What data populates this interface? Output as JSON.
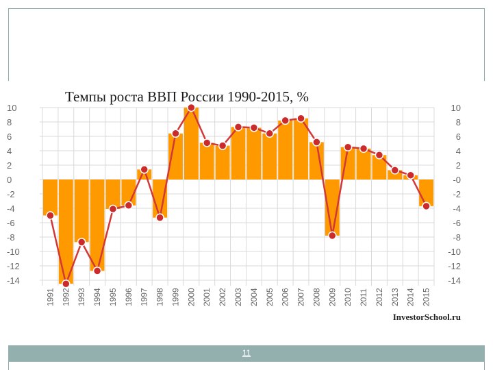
{
  "slide": {
    "page_number": "11"
  },
  "chart_data": {
    "type": "bar",
    "title": "Темпы роста ВВП России 1990-2015, %",
    "source": "InvestorSchool.ru",
    "categories": [
      "1991",
      "1992",
      "1993",
      "1994",
      "1995",
      "1996",
      "1997",
      "1998",
      "1999",
      "2000",
      "2001",
      "2002",
      "2003",
      "2004",
      "2005",
      "2006",
      "2007",
      "2008",
      "2009",
      "2010",
      "2011",
      "2012",
      "2013",
      "2014",
      "2015"
    ],
    "values": [
      -5.0,
      -14.5,
      -8.7,
      -12.7,
      -4.1,
      -3.6,
      1.4,
      -5.3,
      6.4,
      10.0,
      5.1,
      4.7,
      7.3,
      7.2,
      6.4,
      8.2,
      8.5,
      5.2,
      -7.8,
      4.5,
      4.3,
      3.4,
      1.3,
      0.6,
      -3.7
    ],
    "ylim": [
      -14,
      10
    ],
    "yticks_left": [
      "10",
      "8",
      "6",
      "4",
      "2",
      "0",
      "-2",
      "-4",
      "-6",
      "-8",
      "-10",
      "-12",
      "-14"
    ],
    "yticks_right": [
      "10",
      "8",
      "6",
      "4",
      "2",
      "-0",
      "-2",
      "-4",
      "-6",
      "-8",
      "-10",
      "-12",
      "-14"
    ],
    "grid": true,
    "colors": {
      "bar": "#ff9900",
      "line": "#d23838",
      "marker": "#cc2b2b",
      "marker_edge": "#ffffff",
      "grid": "#d9d9d9",
      "axis_text": "#666666"
    }
  }
}
